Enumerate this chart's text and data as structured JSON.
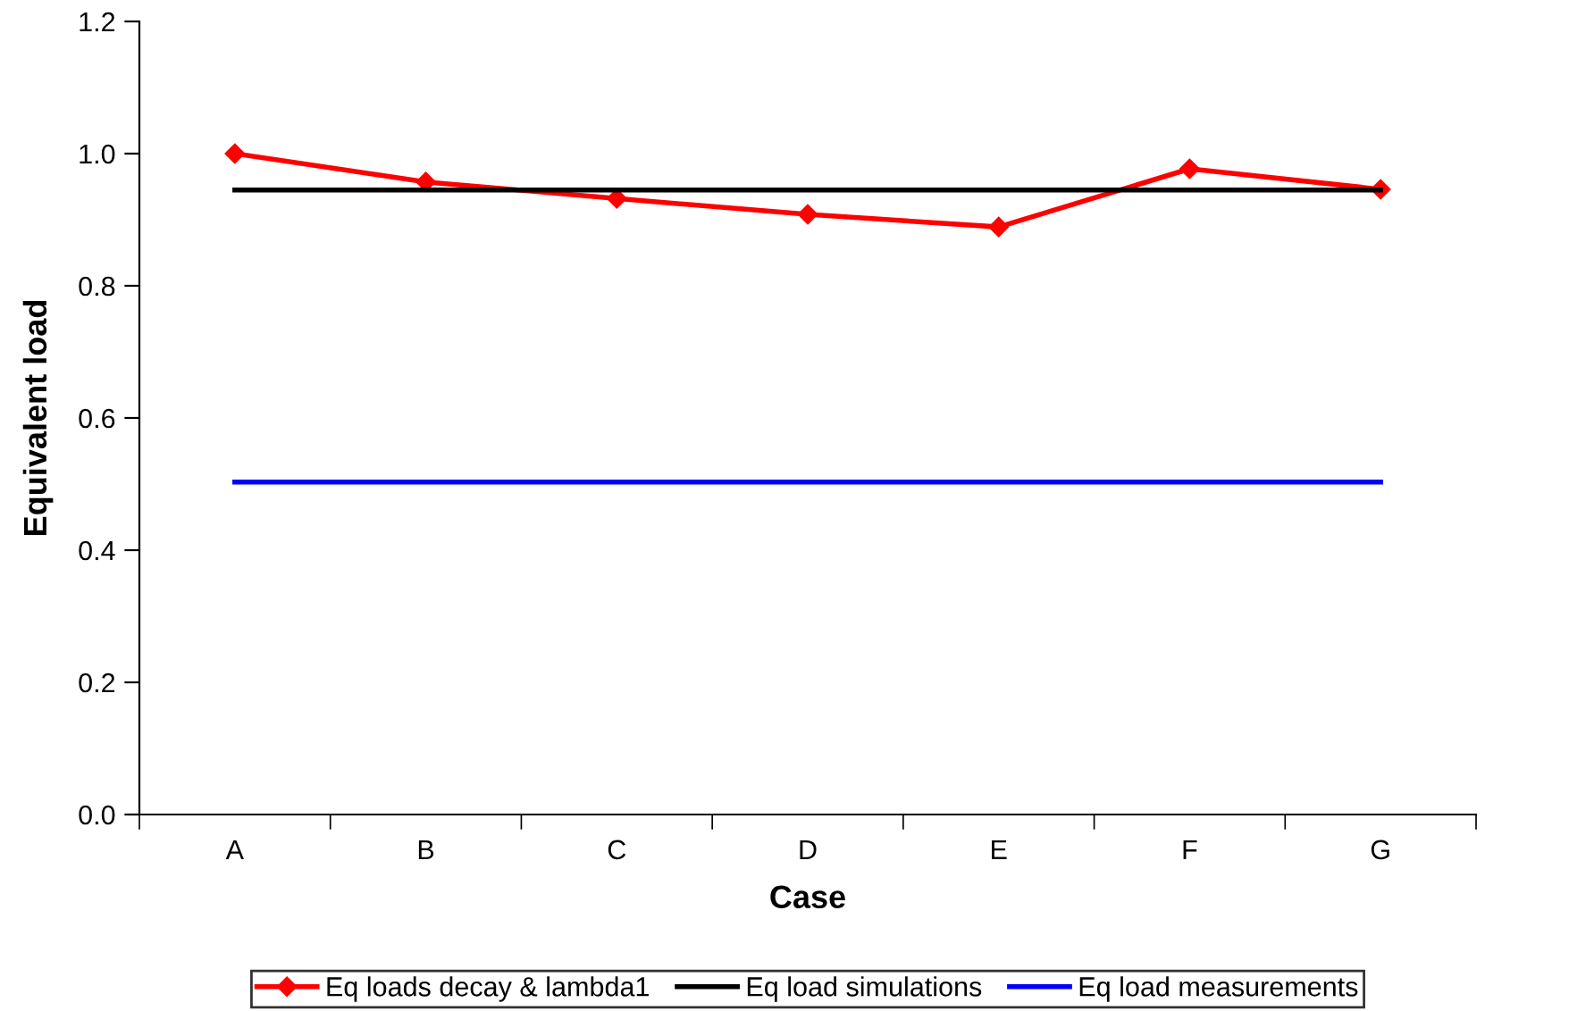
{
  "chart_data": {
    "type": "line",
    "xlabel": "Case",
    "ylabel": "Equivalent load",
    "categories": [
      "A",
      "B",
      "C",
      "D",
      "E",
      "F",
      "G"
    ],
    "series": [
      {
        "name": "Eq loads decay & lambda1",
        "color": "#ff0000",
        "marker": "diamond",
        "values": [
          1.0,
          0.957,
          0.932,
          0.908,
          0.889,
          0.977,
          0.946
        ]
      },
      {
        "name": "Eq load simulations",
        "color": "#000000",
        "marker": "none",
        "values": [
          0.945,
          0.945,
          0.945,
          0.945,
          0.945,
          0.945,
          0.945
        ]
      },
      {
        "name": "Eq load measurements",
        "color": "#0000ff",
        "marker": "none",
        "values": [
          0.503,
          0.503,
          0.503,
          0.503,
          0.503,
          0.503,
          0.503
        ]
      }
    ],
    "ylim": [
      0,
      1.2
    ],
    "yticks": [
      {
        "value": 0,
        "label": "0.0"
      },
      {
        "value": 0.2,
        "label": "0.2"
      },
      {
        "value": 0.4,
        "label": "0.4"
      },
      {
        "value": 0.6,
        "label": "0.6"
      },
      {
        "value": 0.8,
        "label": "0.8"
      },
      {
        "value": 1.0,
        "label": "1.0"
      },
      {
        "value": 1.2,
        "label": "1.2"
      }
    ],
    "grid": false,
    "legend": "bottom",
    "line_style": "solid"
  }
}
